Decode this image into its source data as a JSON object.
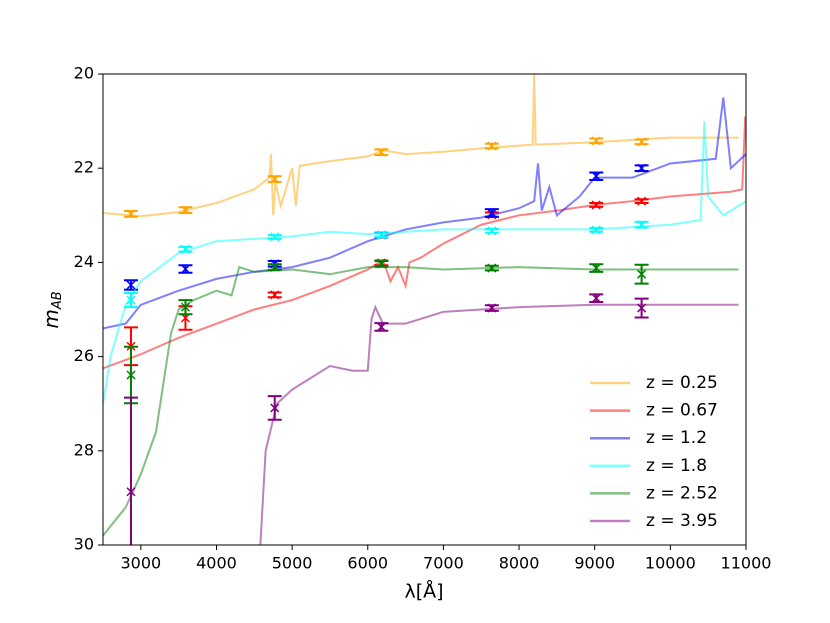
{
  "chart_data": {
    "type": "line",
    "xlabel": "λ[Å]",
    "ylabel": {
      "base": "m",
      "sub": "AB"
    },
    "xlim": [
      2500,
      11000
    ],
    "ylim": [
      30,
      20
    ],
    "xticks": [
      3000,
      4000,
      5000,
      6000,
      7000,
      8000,
      9000,
      10000,
      11000
    ],
    "yticks": [
      20,
      22,
      24,
      26,
      28,
      30
    ],
    "legend": "lower right",
    "series": [
      {
        "name": "z = 0.25",
        "color": "#ffa500",
        "x": [
          2500,
          3000,
          3500,
          4000,
          4500,
          4700,
          4720,
          4750,
          4780,
          4850,
          5000,
          5050,
          5100,
          5500,
          6000,
          6200,
          6500,
          7000,
          7500,
          8000,
          8180,
          8200,
          8220,
          9000,
          10000,
          10900
        ],
        "values": [
          22.95,
          23.02,
          22.93,
          22.74,
          22.45,
          22.2,
          21.7,
          23.0,
          22.3,
          22.8,
          22.0,
          22.8,
          21.95,
          21.85,
          21.75,
          21.62,
          21.7,
          21.65,
          21.58,
          21.52,
          21.5,
          20.0,
          21.5,
          21.45,
          21.35,
          21.35
        ],
        "points": {
          "x": [
            2870,
            3590,
            4770,
            6180,
            7640,
            9020,
            9620
          ],
          "values": [
            22.97,
            22.89,
            22.23,
            21.66,
            21.53,
            21.42,
            21.44
          ],
          "errors": [
            0.06,
            0.06,
            0.06,
            0.06,
            0.05,
            0.05,
            0.05
          ]
        }
      },
      {
        "name": "z = 0.67",
        "color": "#ff0000",
        "x": [
          2500,
          3000,
          3500,
          4000,
          4500,
          5000,
          5500,
          6000,
          6200,
          6300,
          6400,
          6500,
          6550,
          6700,
          7000,
          7500,
          8000,
          8500,
          9000,
          9500,
          10000,
          10800,
          10950,
          10990
        ],
        "values": [
          26.25,
          25.95,
          25.6,
          25.3,
          25.0,
          24.8,
          24.5,
          24.15,
          23.95,
          24.4,
          24.1,
          24.5,
          24.0,
          23.9,
          23.6,
          23.2,
          23.0,
          22.9,
          22.78,
          22.7,
          22.6,
          22.5,
          22.45,
          20.9
        ],
        "points": {
          "x": [
            2870,
            3590,
            4770,
            6180,
            7640,
            9020,
            9620
          ],
          "values": [
            25.78,
            25.18,
            24.69,
            24.01,
            22.99,
            22.78,
            22.7
          ],
          "errors": [
            0.4,
            0.25,
            0.05,
            0.05,
            0.05,
            0.04,
            0.04
          ]
        }
      },
      {
        "name": "z = 1.2",
        "color": "#0000ff",
        "x": [
          2500,
          2800,
          3000,
          3500,
          4000,
          4500,
          5000,
          5500,
          6000,
          6500,
          7000,
          7500,
          8000,
          8200,
          8250,
          8300,
          8400,
          8500,
          8800,
          9000,
          9500,
          10000,
          10600,
          10700,
          10800,
          11000
        ],
        "values": [
          25.4,
          25.3,
          24.9,
          24.6,
          24.35,
          24.2,
          24.1,
          23.9,
          23.55,
          23.3,
          23.15,
          23.05,
          22.85,
          22.7,
          21.9,
          22.9,
          22.4,
          23.0,
          22.6,
          22.2,
          22.2,
          21.9,
          21.8,
          20.5,
          22.0,
          21.7
        ],
        "points": {
          "x": [
            2870,
            3590,
            4770,
            6180,
            7640,
            9020,
            9620
          ],
          "values": [
            24.48,
            24.14,
            24.03,
            23.42,
            22.95,
            22.17,
            22.0
          ],
          "errors": [
            0.1,
            0.08,
            0.06,
            0.05,
            0.08,
            0.08,
            0.06
          ]
        }
      },
      {
        "name": "z = 1.8",
        "color": "#00ffff",
        "x": [
          2500,
          2600,
          2800,
          3000,
          3500,
          4000,
          4500,
          5000,
          5500,
          6000,
          6500,
          7000,
          8000,
          9000,
          10000,
          10400,
          10450,
          10500,
          10700,
          11000
        ],
        "values": [
          27.0,
          26.0,
          24.9,
          24.4,
          23.8,
          23.55,
          23.5,
          23.45,
          23.35,
          23.4,
          23.35,
          23.3,
          23.3,
          23.3,
          23.2,
          23.1,
          21.0,
          22.6,
          23.0,
          22.7
        ],
        "points": {
          "x": [
            2870,
            3590,
            4770,
            6180,
            7640,
            9020,
            9620
          ],
          "values": [
            24.8,
            23.72,
            23.46,
            23.42,
            23.33,
            23.31,
            23.2
          ],
          "errors": [
            0.15,
            0.05,
            0.04,
            0.04,
            0.04,
            0.04,
            0.06
          ]
        }
      },
      {
        "name": "z = 2.52",
        "color": "#008000",
        "x": [
          2500,
          2800,
          3000,
          3200,
          3400,
          3500,
          3700,
          4000,
          4200,
          4300,
          4500,
          5000,
          5500,
          6000,
          6500,
          7000,
          8000,
          9000,
          10000,
          10900
        ],
        "values": [
          29.8,
          29.2,
          28.5,
          27.6,
          25.5,
          25.0,
          24.8,
          24.6,
          24.7,
          24.1,
          24.2,
          24.15,
          24.25,
          24.1,
          24.1,
          24.15,
          24.1,
          24.15,
          24.15,
          24.15
        ],
        "points": {
          "x": [
            2870,
            3590,
            4770,
            6180,
            7640,
            9020,
            9620
          ],
          "values": [
            26.39,
            24.95,
            24.1,
            24.03,
            24.12,
            24.12,
            24.25
          ],
          "errors": [
            0.6,
            0.15,
            0.06,
            0.06,
            0.05,
            0.08,
            0.2
          ]
        }
      },
      {
        "name": "z = 3.95",
        "color": "#800080",
        "x": [
          4580,
          4650,
          4800,
          5000,
          5500,
          5800,
          6000,
          6050,
          6100,
          6200,
          6500,
          7000,
          7500,
          8000,
          9000,
          10000,
          10900
        ],
        "values": [
          30.0,
          28.0,
          27.0,
          26.7,
          26.2,
          26.3,
          26.3,
          25.2,
          24.95,
          25.3,
          25.3,
          25.05,
          25.0,
          24.95,
          24.9,
          24.9,
          24.9
        ],
        "points": {
          "x": [
            2870,
            4770,
            6180,
            7640,
            9020,
            9620
          ],
          "values": [
            28.87,
            27.09,
            25.37,
            24.97,
            24.76,
            24.97
          ],
          "errors": [
            2.0,
            0.25,
            0.08,
            0.06,
            0.08,
            0.2
          ]
        }
      }
    ]
  }
}
